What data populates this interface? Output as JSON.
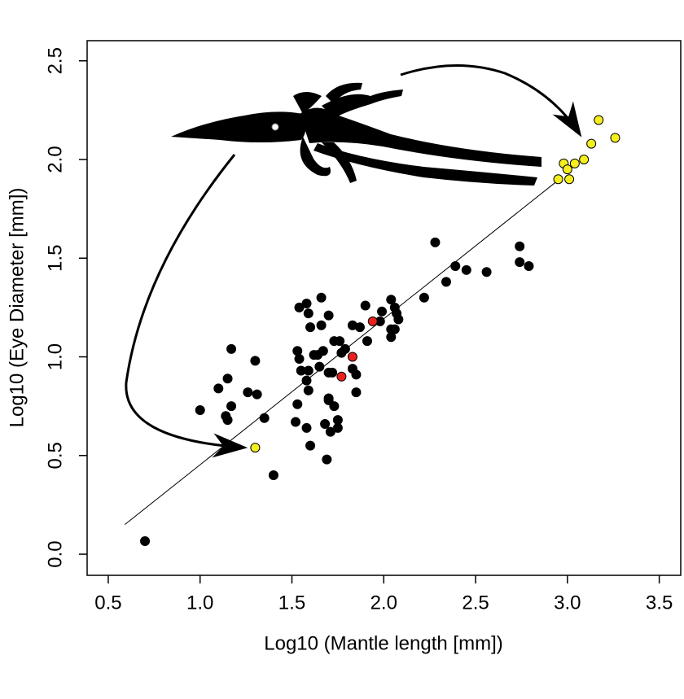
{
  "chart_data": {
    "type": "scatter",
    "xlabel": "Log10 (Mantle length [mm])",
    "ylabel": "Log10 (Eye Diameter [mm])",
    "xlim": [
      0.385,
      3.617
    ],
    "ylim": [
      -0.107,
      2.602
    ],
    "xticks": [
      0.5,
      {
        "value": 1,
        "label": "1.0"
      },
      1.5,
      {
        "value": 2,
        "label": "2.0"
      },
      2.5,
      {
        "value": 3,
        "label": "3.0"
      },
      3.5
    ],
    "yticks": [
      {
        "value": 0,
        "label": "0.0"
      },
      0.5,
      {
        "value": 1,
        "label": "1.0"
      },
      1.5,
      {
        "value": 2,
        "label": "2.0"
      },
      2.5
    ],
    "fit_line": {
      "x": [
        0.59,
        2.97
      ],
      "y": [
        0.15,
        1.91
      ]
    },
    "series": [
      {
        "color": "#000000",
        "x": [
          0.7,
          1.0,
          1.1,
          1.15,
          1.17,
          1.14,
          1.15,
          1.17,
          1.26,
          1.31,
          1.3,
          1.35,
          1.4,
          1.52,
          1.53,
          1.54,
          1.58,
          1.59,
          1.66,
          1.6,
          1.53,
          1.54,
          1.55,
          1.59,
          1.58,
          1.59,
          1.58,
          1.6,
          1.64,
          1.62,
          1.67,
          1.65,
          1.7,
          1.72,
          1.7,
          1.68,
          1.71,
          1.69,
          1.75,
          1.75,
          1.73,
          1.76,
          1.79,
          1.77,
          1.66,
          1.7,
          1.83,
          1.87,
          1.9,
          1.85,
          1.85,
          1.83,
          1.91,
          1.98,
          1.99,
          2.04,
          2.06,
          2.07,
          2.08,
          2.04,
          2.06,
          2.04,
          2.22,
          2.28,
          2.34,
          2.39,
          2.45,
          2.56,
          2.74,
          2.74,
          2.79,
          1.73,
          1.7
        ],
        "values": [
          0.066,
          0.73,
          0.84,
          0.89,
          1.04,
          0.7,
          0.68,
          0.75,
          0.82,
          0.81,
          0.98,
          0.69,
          0.4,
          0.67,
          0.76,
          1.25,
          1.27,
          1.22,
          1.3,
          1.15,
          1.03,
          0.99,
          0.93,
          0.93,
          0.88,
          0.83,
          0.64,
          0.55,
          1.01,
          1.01,
          1.03,
          0.95,
          0.92,
          0.92,
          0.78,
          0.66,
          0.62,
          0.48,
          0.68,
          0.64,
          1.08,
          1.08,
          1.04,
          1.02,
          1.16,
          1.21,
          1.16,
          1.15,
          1.26,
          0.91,
          0.82,
          0.94,
          1.08,
          1.18,
          1.23,
          1.29,
          1.25,
          1.22,
          1.19,
          1.14,
          1.14,
          1.1,
          1.3,
          1.58,
          1.38,
          1.46,
          1.44,
          1.43,
          1.56,
          1.48,
          1.46,
          0.75,
          0.79
        ]
      },
      {
        "color": "#e8201e",
        "x": [
          1.94,
          1.83,
          1.77
        ],
        "values": [
          1.18,
          1.0,
          0.9
        ]
      },
      {
        "color": "#f5ee1e",
        "x": [
          1.3,
          2.95,
          3.01,
          2.98,
          3.0,
          3.04,
          3.09,
          3.13,
          3.17,
          3.26
        ],
        "values": [
          0.54,
          1.9,
          1.9,
          1.98,
          1.95,
          1.98,
          2.0,
          2.08,
          2.2,
          2.11
        ]
      }
    ]
  }
}
